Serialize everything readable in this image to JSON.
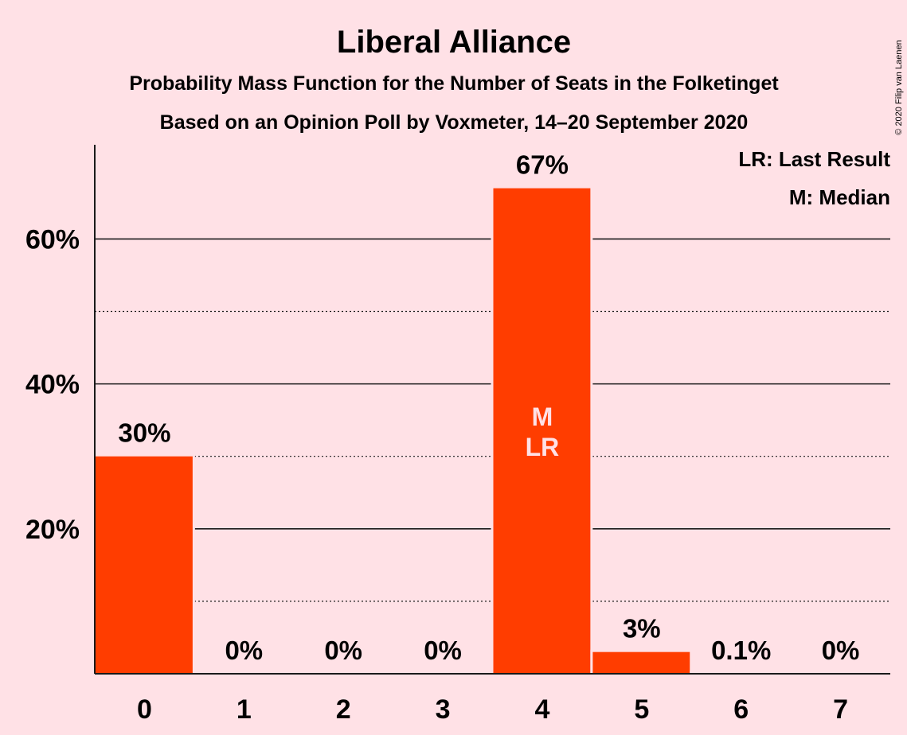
{
  "chart_data": {
    "type": "bar",
    "title": "Liberal Alliance",
    "subtitle": "Probability Mass Function for the Number of Seats in the Folketinget",
    "subtitle2": "Based on an Opinion Poll by Voxmeter, 14–20 September 2020",
    "categories": [
      "0",
      "1",
      "2",
      "3",
      "4",
      "5",
      "6",
      "7"
    ],
    "values": [
      30,
      0,
      0,
      0,
      67,
      3,
      0.1,
      0
    ],
    "data_labels": [
      "30%",
      "0%",
      "0%",
      "0%",
      "67%",
      "3%",
      "0.1%",
      "0%"
    ],
    "ylim": [
      0,
      73
    ],
    "yticks_major": [
      20,
      40,
      60
    ],
    "ytick_labels": [
      "20%",
      "40%",
      "60%"
    ],
    "yticks_minor": [
      10,
      30,
      50
    ],
    "bar_annotations": [
      {
        "category": "4",
        "lines": [
          "M",
          "LR"
        ]
      }
    ],
    "legend": [
      "LR: Last Result",
      "M: Median"
    ],
    "legend_position": "top-right",
    "bar_color": "#FF3D00",
    "background": "#FFE1E6",
    "grid": true
  },
  "copyright": "© 2020 Filip van Laenen"
}
